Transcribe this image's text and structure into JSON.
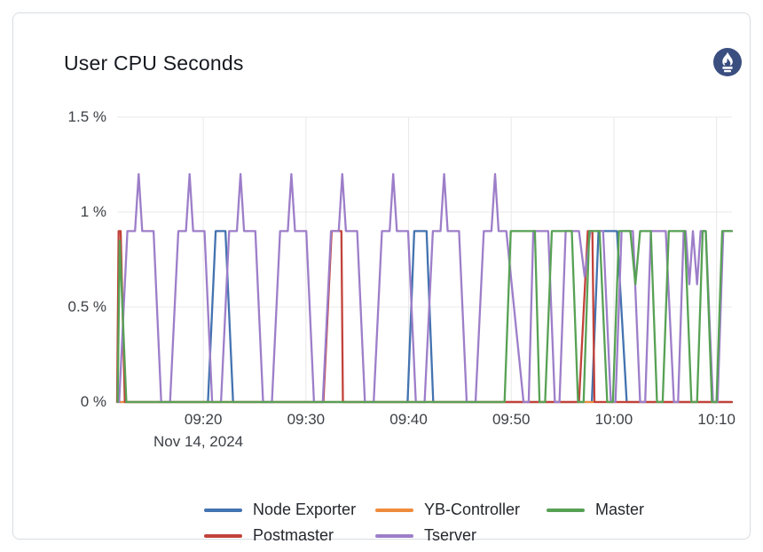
{
  "panel": {
    "title": "User CPU Seconds",
    "logo": {
      "name": "prometheus-logo",
      "bg_color": "#3b4e80",
      "glyph_color": "#ffffff"
    }
  },
  "chart_data": {
    "type": "line",
    "title": "User CPU Seconds",
    "grid": true,
    "grid_color": "#e8e8e8",
    "x_axis": {
      "unit": "time",
      "date_label": "Nov 14, 2024",
      "range_minutes": [
        551.6,
        611.5
      ],
      "ticks": [
        {
          "t": 560,
          "label": "09:20"
        },
        {
          "t": 570,
          "label": "09:30"
        },
        {
          "t": 580,
          "label": "09:40"
        },
        {
          "t": 590,
          "label": "09:50"
        },
        {
          "t": 600,
          "label": "10:00"
        },
        {
          "t": 610,
          "label": "10:10"
        }
      ]
    },
    "y_axis": {
      "unit": "percent",
      "range": [
        0,
        1.5
      ],
      "ticks": [
        {
          "v": 0,
          "label": "0 %"
        },
        {
          "v": 0.5,
          "label": "0.5 %"
        },
        {
          "v": 1,
          "label": "1 %"
        },
        {
          "v": 1.5,
          "label": "1.5 %"
        }
      ]
    },
    "legend": {
      "position": "bottom",
      "columns": 3
    },
    "draw_order": [
      0,
      1,
      3,
      4,
      2
    ],
    "series": [
      {
        "name": "Node Exporter",
        "color": "#4373b0",
        "points": [
          [
            551.6,
            0
          ],
          [
            560.45,
            0
          ],
          [
            561.2,
            0.9
          ],
          [
            562.15,
            0.9
          ],
          [
            562.9,
            0
          ],
          [
            579.9,
            0
          ],
          [
            580.55,
            0.9
          ],
          [
            581.75,
            0.9
          ],
          [
            582.4,
            0
          ],
          [
            597.85,
            0
          ],
          [
            598.5,
            0.9
          ],
          [
            600.3,
            0.9
          ],
          [
            601.25,
            0
          ],
          [
            611.5,
            0
          ]
        ]
      },
      {
        "name": "YB-Controller",
        "color": "#ef8b3d",
        "points": [
          [
            551.6,
            0
          ],
          [
            611.5,
            0
          ]
        ]
      },
      {
        "name": "Master",
        "color": "#57a154",
        "points": [
          [
            551.65,
            0
          ],
          [
            551.85,
            0.85
          ],
          [
            552.5,
            0
          ],
          [
            589.35,
            0
          ],
          [
            589.95,
            0.9
          ],
          [
            592.3,
            0.9
          ],
          [
            592.75,
            0
          ],
          [
            593.3,
            0
          ],
          [
            593.95,
            0.9
          ],
          [
            595.9,
            0.9
          ],
          [
            596.5,
            0
          ],
          [
            597.05,
            0
          ],
          [
            597.6,
            0.9
          ],
          [
            598.6,
            0.9
          ],
          [
            599.35,
            0
          ],
          [
            599.9,
            0
          ],
          [
            600.5,
            0.9
          ],
          [
            601.6,
            0.9
          ],
          [
            602.1,
            0.62
          ],
          [
            602.55,
            0.9
          ],
          [
            603.6,
            0.9
          ],
          [
            604.2,
            0
          ],
          [
            604.75,
            0
          ],
          [
            605.35,
            0.9
          ],
          [
            606.9,
            0.9
          ],
          [
            607.55,
            0
          ],
          [
            608.1,
            0
          ],
          [
            608.65,
            0.9
          ],
          [
            608.95,
            0.9
          ],
          [
            609.55,
            0
          ],
          [
            610.0,
            0
          ],
          [
            610.55,
            0.9
          ],
          [
            611.5,
            0.9
          ]
        ]
      },
      {
        "name": "Postmaster",
        "color": "#c2423a",
        "points": [
          [
            551.6,
            0
          ],
          [
            551.75,
            0.9
          ],
          [
            551.95,
            0.9
          ],
          [
            552.35,
            0
          ],
          [
            571.7,
            0
          ],
          [
            572.5,
            0.9
          ],
          [
            573.45,
            0.9
          ],
          [
            573.6,
            0
          ],
          [
            596.6,
            0
          ],
          [
            597.45,
            0.9
          ],
          [
            597.9,
            0.9
          ],
          [
            598.1,
            0
          ],
          [
            611.5,
            0
          ]
        ]
      },
      {
        "name": "Tserver",
        "color": "#9d7ec9",
        "points": [
          [
            551.8,
            0
          ],
          [
            552.6,
            0.9
          ],
          [
            553.35,
            0.9
          ],
          [
            553.7,
            1.2
          ],
          [
            554.05,
            0.9
          ],
          [
            555.15,
            0.9
          ],
          [
            555.9,
            0
          ],
          [
            556.76,
            0
          ],
          [
            557.56,
            0.9
          ],
          [
            558.31,
            0.9
          ],
          [
            558.66,
            1.2
          ],
          [
            559.01,
            0.9
          ],
          [
            560.11,
            0.9
          ],
          [
            560.86,
            0
          ],
          [
            561.72,
            0
          ],
          [
            562.52,
            0.9
          ],
          [
            563.27,
            0.9
          ],
          [
            563.62,
            1.2
          ],
          [
            563.97,
            0.9
          ],
          [
            565.07,
            0.9
          ],
          [
            565.82,
            0
          ],
          [
            566.68,
            0
          ],
          [
            567.48,
            0.9
          ],
          [
            568.23,
            0.9
          ],
          [
            568.58,
            1.2
          ],
          [
            568.93,
            0.9
          ],
          [
            570.03,
            0.9
          ],
          [
            570.78,
            0
          ],
          [
            571.64,
            0
          ],
          [
            572.44,
            0.9
          ],
          [
            573.19,
            0.9
          ],
          [
            573.54,
            1.2
          ],
          [
            573.89,
            0.9
          ],
          [
            574.99,
            0.9
          ],
          [
            575.74,
            0
          ],
          [
            576.6,
            0
          ],
          [
            577.4,
            0.9
          ],
          [
            578.15,
            0.9
          ],
          [
            578.5,
            1.2
          ],
          [
            578.85,
            0.9
          ],
          [
            579.95,
            0.9
          ],
          [
            580.7,
            0
          ],
          [
            581.56,
            0
          ],
          [
            582.36,
            0.9
          ],
          [
            583.11,
            0.9
          ],
          [
            583.46,
            1.2
          ],
          [
            583.81,
            0.9
          ],
          [
            584.91,
            0.9
          ],
          [
            585.66,
            0
          ],
          [
            586.52,
            0
          ],
          [
            587.32,
            0.9
          ],
          [
            588.07,
            0.9
          ],
          [
            588.42,
            1.2
          ],
          [
            588.77,
            0.9
          ],
          [
            589.52,
            0.9
          ],
          [
            591.2,
            0
          ],
          [
            591.7,
            0
          ],
          [
            592.15,
            0.9
          ],
          [
            593.6,
            0.9
          ],
          [
            594.25,
            0
          ],
          [
            594.7,
            0
          ],
          [
            595.3,
            0.9
          ],
          [
            596.6,
            0.9
          ],
          [
            597.15,
            0.66
          ],
          [
            597.7,
            0.9
          ],
          [
            598.95,
            0.9
          ],
          [
            599.7,
            0
          ],
          [
            600.15,
            0
          ],
          [
            600.75,
            0.9
          ],
          [
            601.85,
            0.9
          ],
          [
            602.55,
            0
          ],
          [
            603.05,
            0
          ],
          [
            603.6,
            0.9
          ],
          [
            605.05,
            0.9
          ],
          [
            605.85,
            0
          ],
          [
            606.25,
            0
          ],
          [
            606.8,
            0.9
          ],
          [
            607.0,
            0.9
          ],
          [
            607.35,
            0.62
          ],
          [
            607.7,
            0.9
          ],
          [
            608.1,
            0.62
          ],
          [
            608.45,
            0.9
          ],
          [
            608.95,
            0.9
          ],
          [
            609.65,
            0
          ],
          [
            610.1,
            0
          ],
          [
            610.65,
            0.9
          ],
          [
            611.5,
            0.9
          ]
        ]
      }
    ]
  }
}
